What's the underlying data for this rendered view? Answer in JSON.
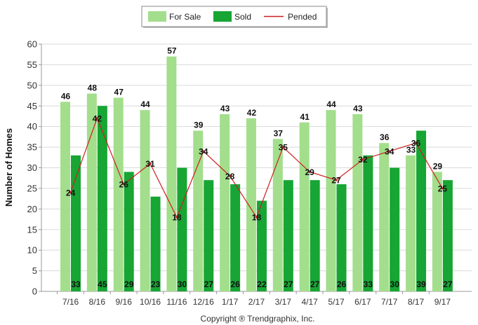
{
  "chart_data": {
    "type": "bar",
    "categories": [
      "7/16",
      "8/16",
      "9/16",
      "10/16",
      "11/16",
      "12/16",
      "1/17",
      "2/17",
      "3/17",
      "4/17",
      "5/17",
      "6/17",
      "7/17",
      "8/17",
      "9/17"
    ],
    "series": [
      {
        "name": "For Sale",
        "type": "bar",
        "color": "#a3de8c",
        "values": [
          46,
          48,
          47,
          44,
          57,
          39,
          43,
          42,
          37,
          41,
          44,
          43,
          36,
          33,
          29
        ]
      },
      {
        "name": "Sold",
        "type": "bar",
        "color": "#17a534",
        "values": [
          33,
          45,
          29,
          23,
          30,
          27,
          26,
          22,
          27,
          27,
          26,
          33,
          30,
          39,
          27
        ]
      },
      {
        "name": "Pended",
        "type": "line",
        "color": "#cc1f1f",
        "values": [
          24,
          42,
          26,
          31,
          18,
          34,
          28,
          18,
          35,
          29,
          27,
          32,
          34,
          36,
          25
        ]
      }
    ],
    "xlabel": "",
    "ylabel": "Number of Homes",
    "ylim": [
      0,
      60
    ],
    "yticks": [
      0,
      5,
      10,
      15,
      20,
      25,
      30,
      35,
      40,
      45,
      50,
      55,
      60
    ],
    "grid": true,
    "legend_position": "top-center"
  },
  "footer": {
    "copyright": "Copyright ® Trendgraphix, Inc."
  }
}
